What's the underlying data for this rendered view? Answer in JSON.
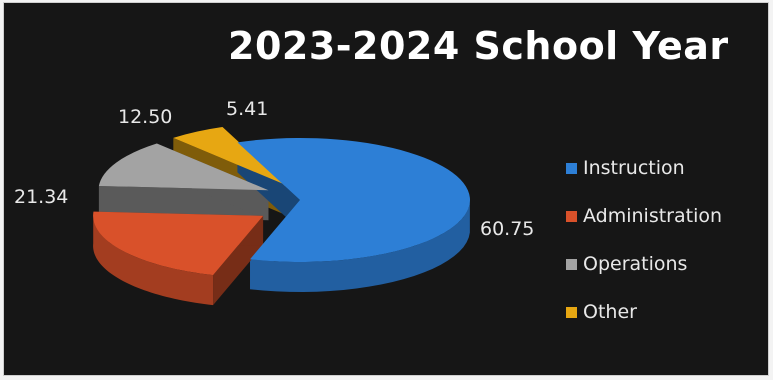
{
  "chart_data": {
    "type": "pie",
    "title": "2023-2024 School Year",
    "categories": [
      "Instruction",
      "Administration",
      "Operations",
      "Other"
    ],
    "values": [
      60.75,
      21.34,
      12.5,
      5.41
    ],
    "data_labels": [
      "60.75",
      "21.34",
      "12.50",
      "5.41"
    ],
    "colors": [
      "#2d7fd6",
      "#d9512a",
      "#a3a3a3",
      "#e7a712"
    ],
    "style": "3d-exploded",
    "legend_position": "right"
  }
}
